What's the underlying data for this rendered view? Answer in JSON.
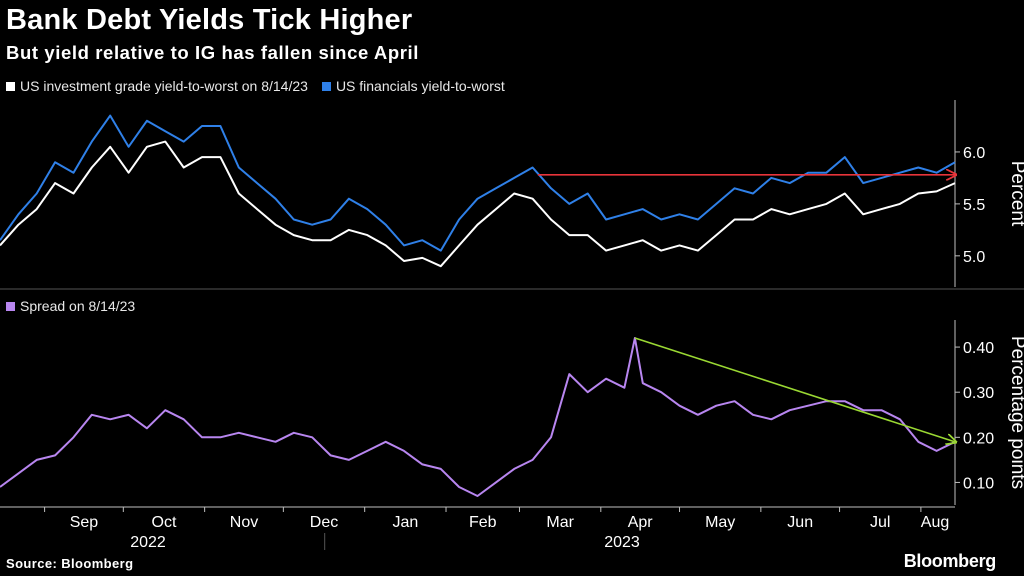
{
  "header": {
    "title": "Bank Debt Yields Tick Higher",
    "subtitle": "But yield relative to IG has fallen since April"
  },
  "footer": {
    "source": "Source: Bloomberg",
    "brand": "Bloomberg"
  },
  "colors": {
    "background": "#000000",
    "ig": "#ffffff",
    "financials": "#2f80e8",
    "spread": "#b886f0",
    "red_arrow": "#e8343a",
    "green_arrow": "#9ad833",
    "axis": "#bfbfbf"
  },
  "x_axis": {
    "months": [
      "Sep",
      "Oct",
      "Nov",
      "Dec",
      "Jan",
      "Feb",
      "Mar",
      "Apr",
      "May",
      "Jun",
      "Jul",
      "Aug"
    ],
    "years": [
      "2022",
      "2023"
    ]
  },
  "chart_data": [
    {
      "type": "line",
      "legend_position": "top-left",
      "ylabel": "Percent",
      "yticks": [
        "5.0",
        "5.5",
        "6.0"
      ],
      "ylim": [
        4.7,
        6.5
      ],
      "y_axis_side": "right",
      "x_range": [
        "2022-08-15",
        "2023-08-14"
      ],
      "series": [
        {
          "name": "US investment grade yield-to-worst on 8/14/23",
          "points": [
            [
              "2022-08-15",
              5.1
            ],
            [
              "2022-08-22",
              5.3
            ],
            [
              "2022-08-29",
              5.45
            ],
            [
              "2022-09-05",
              5.7
            ],
            [
              "2022-09-12",
              5.6
            ],
            [
              "2022-09-19",
              5.85
            ],
            [
              "2022-09-26",
              6.05
            ],
            [
              "2022-10-03",
              5.8
            ],
            [
              "2022-10-10",
              6.05
            ],
            [
              "2022-10-17",
              6.1
            ],
            [
              "2022-10-24",
              5.85
            ],
            [
              "2022-10-31",
              5.95
            ],
            [
              "2022-11-07",
              5.95
            ],
            [
              "2022-11-14",
              5.6
            ],
            [
              "2022-11-21",
              5.45
            ],
            [
              "2022-11-28",
              5.3
            ],
            [
              "2022-12-05",
              5.2
            ],
            [
              "2022-12-12",
              5.15
            ],
            [
              "2022-12-19",
              5.15
            ],
            [
              "2022-12-26",
              5.25
            ],
            [
              "2023-01-02",
              5.2
            ],
            [
              "2023-01-09",
              5.1
            ],
            [
              "2023-01-16",
              4.95
            ],
            [
              "2023-01-23",
              4.98
            ],
            [
              "2023-01-30",
              4.9
            ],
            [
              "2023-02-06",
              5.1
            ],
            [
              "2023-02-13",
              5.3
            ],
            [
              "2023-02-20",
              5.45
            ],
            [
              "2023-02-27",
              5.6
            ],
            [
              "2023-03-06",
              5.55
            ],
            [
              "2023-03-13",
              5.35
            ],
            [
              "2023-03-20",
              5.2
            ],
            [
              "2023-03-27",
              5.2
            ],
            [
              "2023-04-03",
              5.05
            ],
            [
              "2023-04-10",
              5.1
            ],
            [
              "2023-04-17",
              5.15
            ],
            [
              "2023-04-24",
              5.05
            ],
            [
              "2023-05-01",
              5.1
            ],
            [
              "2023-05-08",
              5.05
            ],
            [
              "2023-05-15",
              5.2
            ],
            [
              "2023-05-22",
              5.35
            ],
            [
              "2023-05-29",
              5.35
            ],
            [
              "2023-06-05",
              5.45
            ],
            [
              "2023-06-12",
              5.4
            ],
            [
              "2023-06-19",
              5.45
            ],
            [
              "2023-06-26",
              5.5
            ],
            [
              "2023-07-03",
              5.6
            ],
            [
              "2023-07-10",
              5.4
            ],
            [
              "2023-07-17",
              5.45
            ],
            [
              "2023-07-24",
              5.5
            ],
            [
              "2023-07-31",
              5.6
            ],
            [
              "2023-08-07",
              5.62
            ],
            [
              "2023-08-14",
              5.7
            ]
          ]
        },
        {
          "name": "US financials yield-to-worst",
          "points": [
            [
              "2022-08-15",
              5.15
            ],
            [
              "2022-08-22",
              5.4
            ],
            [
              "2022-08-29",
              5.6
            ],
            [
              "2022-09-05",
              5.9
            ],
            [
              "2022-09-12",
              5.8
            ],
            [
              "2022-09-19",
              6.1
            ],
            [
              "2022-09-26",
              6.35
            ],
            [
              "2022-10-03",
              6.05
            ],
            [
              "2022-10-10",
              6.3
            ],
            [
              "2022-10-17",
              6.2
            ],
            [
              "2022-10-24",
              6.1
            ],
            [
              "2022-10-31",
              6.25
            ],
            [
              "2022-11-07",
              6.25
            ],
            [
              "2022-11-14",
              5.85
            ],
            [
              "2022-11-21",
              5.7
            ],
            [
              "2022-11-28",
              5.55
            ],
            [
              "2022-12-05",
              5.35
            ],
            [
              "2022-12-12",
              5.3
            ],
            [
              "2022-12-19",
              5.35
            ],
            [
              "2022-12-26",
              5.55
            ],
            [
              "2023-01-02",
              5.45
            ],
            [
              "2023-01-09",
              5.3
            ],
            [
              "2023-01-16",
              5.1
            ],
            [
              "2023-01-23",
              5.15
            ],
            [
              "2023-01-30",
              5.05
            ],
            [
              "2023-02-06",
              5.35
            ],
            [
              "2023-02-13",
              5.55
            ],
            [
              "2023-02-20",
              5.65
            ],
            [
              "2023-02-27",
              5.75
            ],
            [
              "2023-03-06",
              5.85
            ],
            [
              "2023-03-13",
              5.65
            ],
            [
              "2023-03-20",
              5.5
            ],
            [
              "2023-03-27",
              5.6
            ],
            [
              "2023-04-03",
              5.35
            ],
            [
              "2023-04-10",
              5.4
            ],
            [
              "2023-04-17",
              5.45
            ],
            [
              "2023-04-24",
              5.35
            ],
            [
              "2023-05-01",
              5.4
            ],
            [
              "2023-05-08",
              5.35
            ],
            [
              "2023-05-15",
              5.5
            ],
            [
              "2023-05-22",
              5.65
            ],
            [
              "2023-05-29",
              5.6
            ],
            [
              "2023-06-05",
              5.75
            ],
            [
              "2023-06-12",
              5.7
            ],
            [
              "2023-06-19",
              5.8
            ],
            [
              "2023-06-26",
              5.8
            ],
            [
              "2023-07-03",
              5.95
            ],
            [
              "2023-07-10",
              5.7
            ],
            [
              "2023-07-17",
              5.75
            ],
            [
              "2023-07-24",
              5.8
            ],
            [
              "2023-07-31",
              5.85
            ],
            [
              "2023-08-07",
              5.8
            ],
            [
              "2023-08-14",
              5.9
            ]
          ]
        }
      ],
      "annotation": {
        "type": "arrow",
        "from": [
          "2023-03-08",
          5.78
        ],
        "to": [
          "2023-08-14",
          5.78
        ]
      }
    },
    {
      "type": "line",
      "legend_position": "top-left",
      "ylabel": "Percentage points",
      "yticks": [
        "0.10",
        "0.20",
        "0.30",
        "0.40"
      ],
      "ylim": [
        0.05,
        0.46
      ],
      "y_axis_side": "right",
      "x_range": [
        "2022-08-15",
        "2023-08-14"
      ],
      "series": [
        {
          "name": "Spread on 8/14/23",
          "points": [
            [
              "2022-08-15",
              0.09
            ],
            [
              "2022-08-22",
              0.12
            ],
            [
              "2022-08-29",
              0.15
            ],
            [
              "2022-09-05",
              0.16
            ],
            [
              "2022-09-12",
              0.2
            ],
            [
              "2022-09-19",
              0.25
            ],
            [
              "2022-09-26",
              0.24
            ],
            [
              "2022-10-03",
              0.25
            ],
            [
              "2022-10-10",
              0.22
            ],
            [
              "2022-10-17",
              0.26
            ],
            [
              "2022-10-24",
              0.24
            ],
            [
              "2022-10-31",
              0.2
            ],
            [
              "2022-11-07",
              0.2
            ],
            [
              "2022-11-14",
              0.21
            ],
            [
              "2022-11-21",
              0.2
            ],
            [
              "2022-11-28",
              0.19
            ],
            [
              "2022-12-05",
              0.21
            ],
            [
              "2022-12-12",
              0.2
            ],
            [
              "2022-12-19",
              0.16
            ],
            [
              "2022-12-26",
              0.15
            ],
            [
              "2023-01-02",
              0.17
            ],
            [
              "2023-01-09",
              0.19
            ],
            [
              "2023-01-16",
              0.17
            ],
            [
              "2023-01-23",
              0.14
            ],
            [
              "2023-01-30",
              0.13
            ],
            [
              "2023-02-06",
              0.09
            ],
            [
              "2023-02-13",
              0.07
            ],
            [
              "2023-02-20",
              0.1
            ],
            [
              "2023-02-27",
              0.13
            ],
            [
              "2023-03-06",
              0.15
            ],
            [
              "2023-03-13",
              0.2
            ],
            [
              "2023-03-20",
              0.34
            ],
            [
              "2023-03-27",
              0.3
            ],
            [
              "2023-04-03",
              0.33
            ],
            [
              "2023-04-10",
              0.31
            ],
            [
              "2023-04-14",
              0.42
            ],
            [
              "2023-04-17",
              0.32
            ],
            [
              "2023-04-24",
              0.3
            ],
            [
              "2023-05-01",
              0.27
            ],
            [
              "2023-05-08",
              0.25
            ],
            [
              "2023-05-15",
              0.27
            ],
            [
              "2023-05-22",
              0.28
            ],
            [
              "2023-05-29",
              0.25
            ],
            [
              "2023-06-05",
              0.24
            ],
            [
              "2023-06-12",
              0.26
            ],
            [
              "2023-06-19",
              0.27
            ],
            [
              "2023-06-26",
              0.28
            ],
            [
              "2023-07-03",
              0.28
            ],
            [
              "2023-07-10",
              0.26
            ],
            [
              "2023-07-17",
              0.26
            ],
            [
              "2023-07-24",
              0.24
            ],
            [
              "2023-07-31",
              0.19
            ],
            [
              "2023-08-07",
              0.17
            ],
            [
              "2023-08-14",
              0.19
            ]
          ]
        }
      ],
      "annotation": {
        "type": "arrow",
        "from": [
          "2023-04-14",
          0.42
        ],
        "to": [
          "2023-08-14",
          0.19
        ]
      }
    }
  ]
}
